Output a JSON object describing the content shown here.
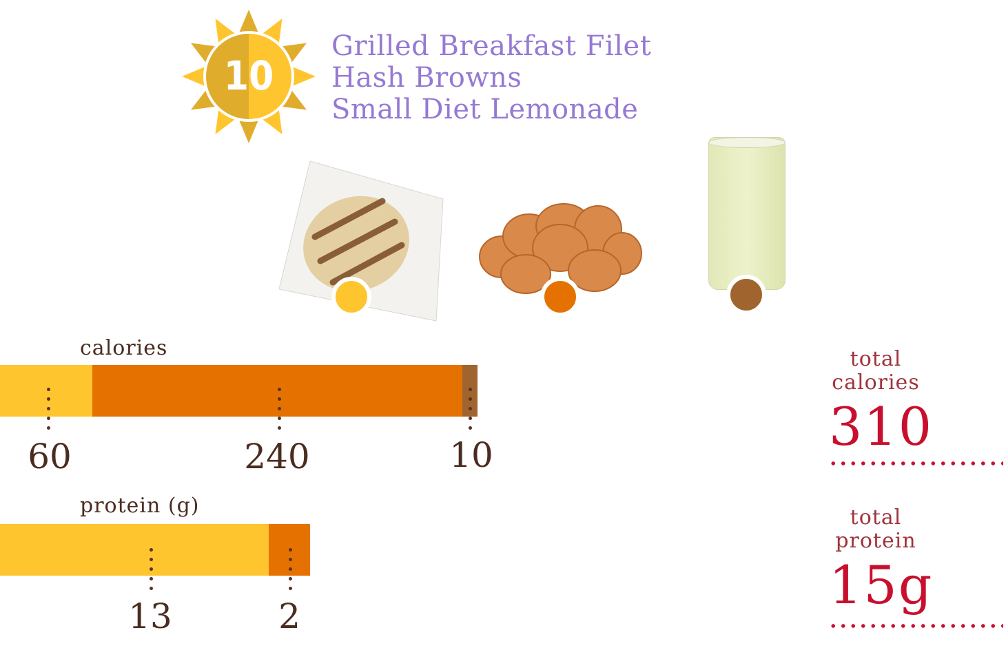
{
  "badge": {
    "number": "10",
    "icon": "sun-icon",
    "colors": {
      "dark": "#E0AC2C",
      "light": "#FFC52E"
    }
  },
  "meal": {
    "items": [
      {
        "name": "Grilled Breakfast Filet",
        "color": "#FFC52E",
        "image": "grilled-filet-image"
      },
      {
        "name": "Hash Browns",
        "color": "#E57200",
        "image": "hash-browns-image"
      },
      {
        "name": "Small Diet Lemonade",
        "color": "#A0642F",
        "image": "lemonade-image"
      }
    ]
  },
  "calories": {
    "label": "calories",
    "values": [
      "60",
      "240",
      "10"
    ]
  },
  "protein": {
    "label": "protein (g)",
    "values": [
      "13",
      "2"
    ]
  },
  "totals": {
    "calories": {
      "label_line1": "total",
      "label_line2": "calories",
      "value": "310"
    },
    "protein": {
      "label_line1": "total",
      "label_line2": "protein",
      "value": "15g"
    }
  },
  "chart_data": [
    {
      "type": "bar",
      "title": "calories",
      "orientation": "horizontal-stacked",
      "categories": [
        "Grilled Breakfast Filet",
        "Hash Browns",
        "Small Diet Lemonade"
      ],
      "values": [
        60,
        240,
        10
      ],
      "colors": [
        "#FFC52E",
        "#E57200",
        "#A0642F"
      ],
      "total": 310
    },
    {
      "type": "bar",
      "title": "protein (g)",
      "orientation": "horizontal-stacked",
      "categories": [
        "Grilled Breakfast Filet",
        "Hash Browns",
        "Small Diet Lemonade"
      ],
      "values": [
        13,
        2,
        0
      ],
      "colors": [
        "#FFC52E",
        "#E57200",
        "#A0642F"
      ],
      "total": 15,
      "unit": "g"
    }
  ]
}
